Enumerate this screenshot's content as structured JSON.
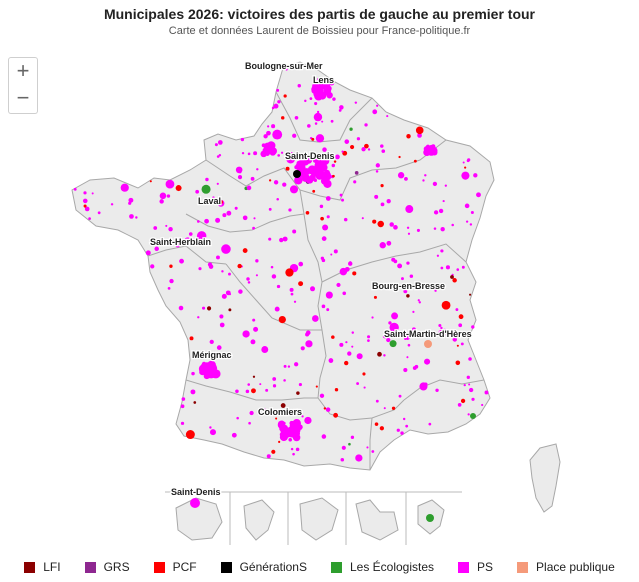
{
  "header": {
    "title": "Municipales 2026: victoires des partis de gauche au premier tour",
    "subtitle": "Carte et données Laurent de Boissieu pour France-politique.fr"
  },
  "controls": {
    "zoom_in": "+",
    "zoom_out": "−"
  },
  "map": {
    "land_color": "#ebebeb",
    "border_color": "#a8a8a8",
    "cities": [
      {
        "name": "Boulogne-sur-Mer"
      },
      {
        "name": "Lens"
      },
      {
        "name": "Saint-Denis"
      },
      {
        "name": "Laval"
      },
      {
        "name": "Saint-Herblain"
      },
      {
        "name": "Bourg-en-Bresse"
      },
      {
        "name": "Saint-Martin-d'Hères"
      },
      {
        "name": "Mérignac"
      },
      {
        "name": "Colomiers"
      },
      {
        "name": "Saint-Denis"
      }
    ]
  },
  "legend": [
    {
      "label": "LFI",
      "color": "#8b0000"
    },
    {
      "label": "GRS",
      "color": "#8e2790"
    },
    {
      "label": "PCF",
      "color": "#ff0000"
    },
    {
      "label": "GénérationS",
      "color": "#000000"
    },
    {
      "label": "Les Écologistes",
      "color": "#2e9e2e"
    },
    {
      "label": "PS",
      "color": "#ff00ff"
    },
    {
      "label": "Place publique",
      "color": "#f59a7a"
    }
  ]
}
